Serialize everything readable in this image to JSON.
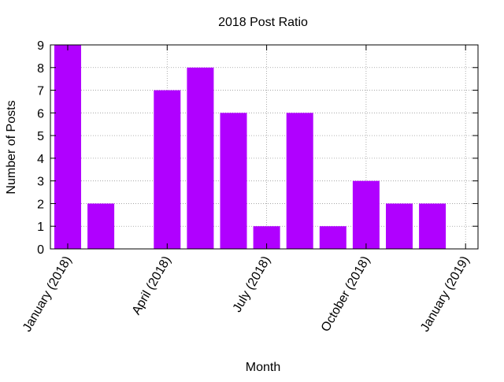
{
  "chart_data": {
    "type": "bar",
    "title": "2018 Post Ratio",
    "xlabel": "Month",
    "ylabel": "Number of Posts",
    "categories": [
      "2018-01",
      "2018-02",
      "2018-03",
      "2018-04",
      "2018-05",
      "2018-06",
      "2018-07",
      "2018-08",
      "2018-09",
      "2018-10",
      "2018-11",
      "2018-12"
    ],
    "values": [
      9,
      2,
      0,
      7,
      8,
      6,
      1,
      6,
      1,
      3,
      2,
      2
    ],
    "ylim": [
      0,
      9
    ],
    "yticks": [
      0,
      1,
      2,
      3,
      4,
      5,
      6,
      7,
      8,
      9
    ],
    "xticks": [
      {
        "label": "January (2018)",
        "month_index": 0
      },
      {
        "label": "April (2018)",
        "month_index": 3
      },
      {
        "label": "July (2018)",
        "month_index": 6
      },
      {
        "label": "October (2018)",
        "month_index": 9
      },
      {
        "label": "January (2019)",
        "month_index": 12
      }
    ],
    "grid": true,
    "bar_color": "#b000ff"
  }
}
